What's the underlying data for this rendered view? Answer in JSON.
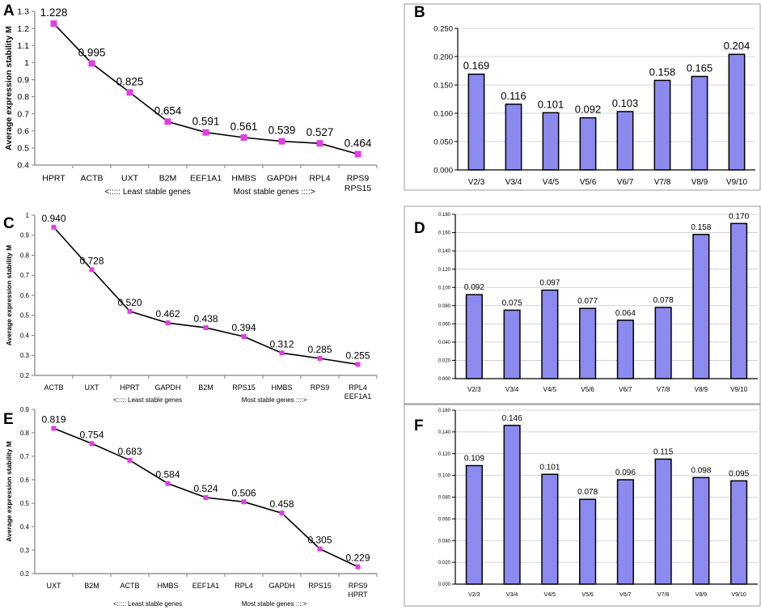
{
  "colors": {
    "line": "#000000",
    "marker": "#e23ee2",
    "bar_fill": "#8b8bef",
    "bar_stroke": "#000000",
    "grid": "#c8c8c8",
    "frame": "#808080"
  },
  "chart_data": [
    {
      "panel": "A",
      "type": "line",
      "title": "",
      "ylabel": "Average expression stability M",
      "ylim": [
        0.4,
        1.3
      ],
      "yticks": [
        "0.4",
        "0.5",
        "0.6",
        "0.7",
        "0.8",
        "0.9",
        "1",
        "1.1",
        "1.2",
        "1.3"
      ],
      "categories": [
        "HPRT",
        "ACTB",
        "UXT",
        "B2M",
        "EEF1A1",
        "HMBS",
        "GAPDH",
        "RPL4",
        "RPS9"
      ],
      "last_category_second_line": "RPS15",
      "values": [
        1.228,
        0.995,
        0.825,
        0.654,
        0.591,
        0.561,
        0.539,
        0.527,
        0.464
      ],
      "value_labels": [
        "1.228",
        "0.995",
        "0.825",
        "0.654",
        "0.591",
        "0.561",
        "0.539",
        "0.527",
        "0.464"
      ],
      "xlabel_left": "<::::: Least stable genes",
      "xlabel_right": "Most stable genes ::::>"
    },
    {
      "panel": "B",
      "type": "bar",
      "title": "",
      "ylim": [
        0,
        0.25
      ],
      "yticks": [
        "0.000",
        "0.050",
        "0.100",
        "0.150",
        "0.200",
        "0.250"
      ],
      "categories": [
        "V2/3",
        "V3/4",
        "V4/5",
        "V5/6",
        "V6/7",
        "V7/8",
        "V8/9",
        "V9/10"
      ],
      "values": [
        0.169,
        0.116,
        0.101,
        0.092,
        0.103,
        0.158,
        0.165,
        0.204
      ],
      "value_labels": [
        "0.169",
        "0.116",
        "0.101",
        "0.092",
        "0.103",
        "0.158",
        "0.165",
        "0.204"
      ]
    },
    {
      "panel": "C",
      "type": "line",
      "title": "",
      "ylabel": "Average expression stability M",
      "ylim": [
        0.2,
        1.0
      ],
      "yticks": [
        "0.2",
        "0.3",
        "0.4",
        "0.5",
        "0.6",
        "0.7",
        "0.8",
        "0.9",
        "1"
      ],
      "categories": [
        "ACTB",
        "UXT",
        "HPRT",
        "GAPDH",
        "B2M",
        "RPS15",
        "HMBS",
        "RPS9",
        "RPL4"
      ],
      "last_category_second_line": "EEF1A1",
      "values": [
        0.94,
        0.728,
        0.52,
        0.462,
        0.438,
        0.394,
        0.312,
        0.285,
        0.255
      ],
      "value_labels": [
        "0.940",
        "0.728",
        "0.520",
        "0.462",
        "0.438",
        "0.394",
        "0.312",
        "0.285",
        "0.255"
      ],
      "xlabel_left": "<::::: Least stable genes",
      "xlabel_right": "Most stable genes ::::>"
    },
    {
      "panel": "D",
      "type": "bar",
      "title": "",
      "ylim": [
        0,
        0.18
      ],
      "yticks": [
        "0.000",
        "0.020",
        "0.040",
        "0.060",
        "0.080",
        "0.100",
        "0.120",
        "0.140",
        "0.160",
        "0.180"
      ],
      "categories": [
        "V2/3",
        "V3/4",
        "V4/5",
        "V5/6",
        "V6/7",
        "V7/8",
        "V8/9",
        "V9/10"
      ],
      "values": [
        0.092,
        0.075,
        0.097,
        0.077,
        0.064,
        0.078,
        0.158,
        0.17
      ],
      "value_labels": [
        "0.092",
        "0.075",
        "0.097",
        "0.077",
        "0.064",
        "0.078",
        "0.158",
        "0.170"
      ]
    },
    {
      "panel": "E",
      "type": "line",
      "title": "",
      "ylabel": "Average expression stability M",
      "ylim": [
        0.2,
        0.9
      ],
      "yticks": [
        "0.2",
        "0.3",
        "0.4",
        "0.5",
        "0.6",
        "0.7",
        "0.8",
        "0.9"
      ],
      "categories": [
        "UXT",
        "B2M",
        "ACTB",
        "HMBS",
        "EEF1A1",
        "RPL4",
        "GAPDH",
        "RPS15",
        "RPS9"
      ],
      "last_category_second_line": "HPRT",
      "values": [
        0.819,
        0.754,
        0.683,
        0.584,
        0.524,
        0.506,
        0.458,
        0.305,
        0.229
      ],
      "value_labels": [
        "0.819",
        "0.754",
        "0.683",
        "0.584",
        "0.524",
        "0.506",
        "0.458",
        "0.305",
        "0.229"
      ],
      "xlabel_left": "<::::: Least stable genes",
      "xlabel_right": "Most stable genes ::::>"
    },
    {
      "panel": "F",
      "type": "bar",
      "title": "",
      "ylim": [
        0,
        0.16
      ],
      "yticks": [
        "0.000",
        "0.020",
        "0.040",
        "0.060",
        "0.080",
        "0.100",
        "0.120",
        "0.140",
        "0.160"
      ],
      "categories": [
        "V2/3",
        "V3/4",
        "V4/5",
        "V5/6",
        "V6/7",
        "V7/8",
        "V8/9",
        "V9/10"
      ],
      "values": [
        0.109,
        0.146,
        0.101,
        0.078,
        0.096,
        0.115,
        0.098,
        0.095
      ],
      "value_labels": [
        "0.109",
        "0.146",
        "0.101",
        "0.078",
        "0.096",
        "0.115",
        "0.098",
        "0.095"
      ]
    }
  ]
}
